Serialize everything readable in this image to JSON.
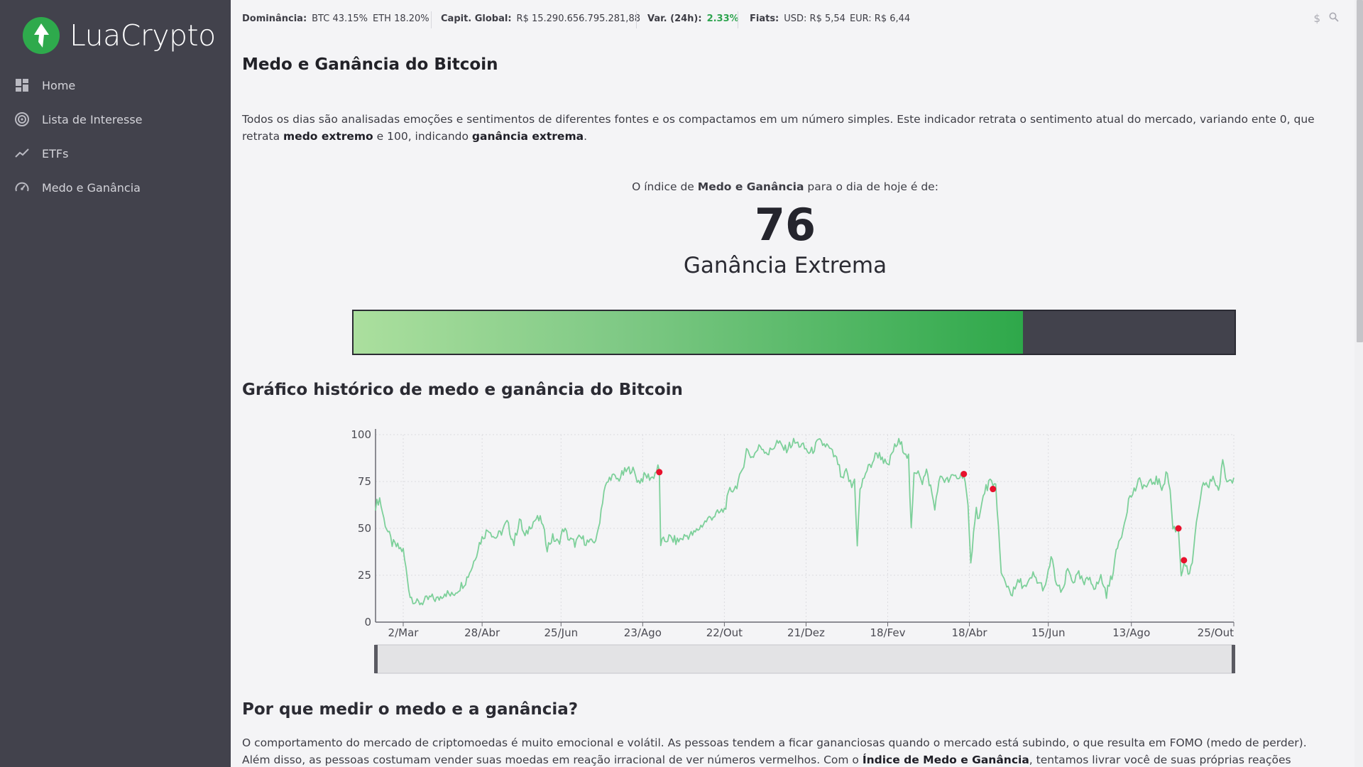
{
  "app": {
    "brand": "LuaCrypto",
    "accent_color": "#2eaa4c",
    "sidebar_color": "#42424c"
  },
  "sidebar": {
    "items": [
      {
        "label": "Home",
        "icon": "dashboard-icon"
      },
      {
        "label": "Lista de Interesse",
        "icon": "target-icon"
      },
      {
        "label": "ETFs",
        "icon": "trend-line-icon"
      },
      {
        "label": "Medo e Ganância",
        "icon": "speedometer-icon"
      }
    ]
  },
  "topbar": {
    "dominance_label": "Dominância:",
    "dominance_btc": "BTC 43.15%",
    "dominance_eth": "ETH 18.20%",
    "cap_label": "Capit. Global:",
    "cap_value": "R$ 15.290.656.795.281,88",
    "var_label": "Var. (24h):",
    "var_value": "2.33%",
    "fiats_label": "Fiats:",
    "fiats_usd": "USD: R$ 5,54",
    "fiats_eur": "EUR: R$ 6,44",
    "icons": [
      "dollar-icon",
      "search-icon"
    ]
  },
  "page": {
    "title": "Medo e Ganância do Bitcoin",
    "intro_part1": "Todos os dias são analisadas emoções e sentimentos de diferentes fontes e os compactamos em um número simples. Este indicador retrata o sentimento atual do mercado, variando ente 0, que retrata ",
    "intro_bold1": "medo extremo",
    "intro_part2": " e 100, indicando ",
    "intro_bold2": "ganância extrema",
    "intro_part3": ".",
    "index_caption_1": "O índice de ",
    "index_caption_bold": "Medo e Ganância",
    "index_caption_2": " para o dia de hoje é de:",
    "index_value": "76",
    "index_label": "Ganância Extrema",
    "gauge_fraction": 0.76,
    "chart_title": "Gráfico histórico de medo e ganância do Bitcoin",
    "why_title": "Por que medir o medo e a ganância?",
    "why_part1": "O comportamento do mercado de criptomoedas é muito emocional e volátil. As pessoas tendem a ficar gananciosas quando o mercado está subindo, o que resulta em FOMO (medo de perder). Além disso, as pessoas costumam vender suas moedas em reação irracional de ver números vermelhos. Com o ",
    "why_bold": "Índice de Medo e Ganância",
    "why_part2": ", tentamos livrar você de suas próprias reações emocionais exageradas."
  },
  "chart_data": {
    "type": "line",
    "line_color": "#7dd09a",
    "marker_color": "#e8112d",
    "ylim": [
      0,
      100
    ],
    "yticks": [
      0,
      25,
      50,
      75,
      100
    ],
    "xtick_labels": [
      "2/Mar",
      "28/Abr",
      "25/Jun",
      "23/Ago",
      "22/Out",
      "21/Dez",
      "18/Fev",
      "18/Abr",
      "15/Jun",
      "13/Ago",
      "25/Out"
    ],
    "xtick_index": [
      20,
      77,
      134,
      193,
      252,
      311,
      370,
      429,
      486,
      546,
      620
    ],
    "keyframes": [
      [
        0,
        62
      ],
      [
        3,
        66
      ],
      [
        6,
        55
      ],
      [
        9,
        48
      ],
      [
        12,
        42
      ],
      [
        16,
        40
      ],
      [
        20,
        38
      ],
      [
        25,
        14
      ],
      [
        30,
        10
      ],
      [
        35,
        11
      ],
      [
        40,
        13
      ],
      [
        45,
        12
      ],
      [
        50,
        16
      ],
      [
        55,
        14
      ],
      [
        60,
        18
      ],
      [
        65,
        22
      ],
      [
        70,
        30
      ],
      [
        75,
        42
      ],
      [
        78,
        46
      ],
      [
        82,
        50
      ],
      [
        86,
        45
      ],
      [
        90,
        47
      ],
      [
        95,
        53
      ],
      [
        100,
        42
      ],
      [
        104,
        55
      ],
      [
        108,
        45
      ],
      [
        112,
        52
      ],
      [
        116,
        55
      ],
      [
        120,
        54
      ],
      [
        124,
        40
      ],
      [
        128,
        45
      ],
      [
        132,
        42
      ],
      [
        136,
        50
      ],
      [
        140,
        44
      ],
      [
        144,
        42
      ],
      [
        148,
        45
      ],
      [
        152,
        43
      ],
      [
        156,
        42
      ],
      [
        160,
        45
      ],
      [
        165,
        70
      ],
      [
        170,
        78
      ],
      [
        175,
        76
      ],
      [
        180,
        80
      ],
      [
        185,
        82
      ],
      [
        190,
        75
      ],
      [
        195,
        78
      ],
      [
        200,
        77
      ],
      [
        204,
        82
      ],
      [
        205,
        80
      ],
      [
        206,
        42
      ],
      [
        212,
        45
      ],
      [
        218,
        43
      ],
      [
        224,
        46
      ],
      [
        230,
        47
      ],
      [
        236,
        52
      ],
      [
        242,
        56
      ],
      [
        248,
        58
      ],
      [
        252,
        60
      ],
      [
        256,
        70
      ],
      [
        260,
        72
      ],
      [
        264,
        78
      ],
      [
        268,
        92
      ],
      [
        272,
        88
      ],
      [
        278,
        94
      ],
      [
        284,
        90
      ],
      [
        290,
        96
      ],
      [
        296,
        92
      ],
      [
        302,
        96
      ],
      [
        308,
        94
      ],
      [
        314,
        90
      ],
      [
        320,
        96
      ],
      [
        326,
        94
      ],
      [
        330,
        90
      ],
      [
        334,
        85
      ],
      [
        337,
        75
      ],
      [
        340,
        80
      ],
      [
        344,
        72
      ],
      [
        346,
        76
      ],
      [
        348,
        42
      ],
      [
        350,
        70
      ],
      [
        354,
        80
      ],
      [
        358,
        84
      ],
      [
        362,
        90
      ],
      [
        366,
        88
      ],
      [
        370,
        82
      ],
      [
        374,
        92
      ],
      [
        378,
        96
      ],
      [
        382,
        92
      ],
      [
        385,
        88
      ],
      [
        387,
        48
      ],
      [
        389,
        78
      ],
      [
        392,
        82
      ],
      [
        395,
        75
      ],
      [
        398,
        80
      ],
      [
        401,
        72
      ],
      [
        404,
        60
      ],
      [
        406,
        72
      ],
      [
        409,
        78
      ],
      [
        412,
        75
      ],
      [
        415,
        76
      ],
      [
        418,
        78
      ],
      [
        421,
        77
      ],
      [
        424,
        79
      ],
      [
        425,
        79
      ],
      [
        426,
        74
      ],
      [
        428,
        60
      ],
      [
        430,
        30
      ],
      [
        432,
        50
      ],
      [
        434,
        60
      ],
      [
        436,
        55
      ],
      [
        440,
        70
      ],
      [
        444,
        75
      ],
      [
        446,
        71
      ],
      [
        448,
        74
      ],
      [
        450,
        50
      ],
      [
        452,
        25
      ],
      [
        456,
        20
      ],
      [
        460,
        15
      ],
      [
        465,
        22
      ],
      [
        470,
        18
      ],
      [
        475,
        25
      ],
      [
        480,
        20
      ],
      [
        484,
        18
      ],
      [
        488,
        35
      ],
      [
        492,
        20
      ],
      [
        496,
        15
      ],
      [
        500,
        28
      ],
      [
        504,
        22
      ],
      [
        508,
        25
      ],
      [
        512,
        20
      ],
      [
        516,
        24
      ],
      [
        520,
        18
      ],
      [
        524,
        24
      ],
      [
        528,
        15
      ],
      [
        532,
        25
      ],
      [
        536,
        40
      ],
      [
        540,
        50
      ],
      [
        544,
        65
      ],
      [
        548,
        70
      ],
      [
        552,
        75
      ],
      [
        556,
        72
      ],
      [
        560,
        74
      ],
      [
        564,
        76
      ],
      [
        568,
        72
      ],
      [
        572,
        80
      ],
      [
        574,
        70
      ],
      [
        576,
        50
      ],
      [
        580,
        50
      ],
      [
        582,
        25
      ],
      [
        584,
        33
      ],
      [
        586,
        28
      ],
      [
        588,
        25
      ],
      [
        590,
        30
      ],
      [
        592,
        48
      ],
      [
        595,
        60
      ],
      [
        598,
        75
      ],
      [
        602,
        72
      ],
      [
        605,
        78
      ],
      [
        609,
        70
      ],
      [
        612,
        85
      ],
      [
        615,
        75
      ],
      [
        618,
        76
      ],
      [
        620,
        77
      ]
    ],
    "markers": [
      [
        205,
        80
      ],
      [
        425,
        79
      ],
      [
        446,
        71
      ],
      [
        580,
        50
      ],
      [
        584,
        33
      ]
    ]
  }
}
